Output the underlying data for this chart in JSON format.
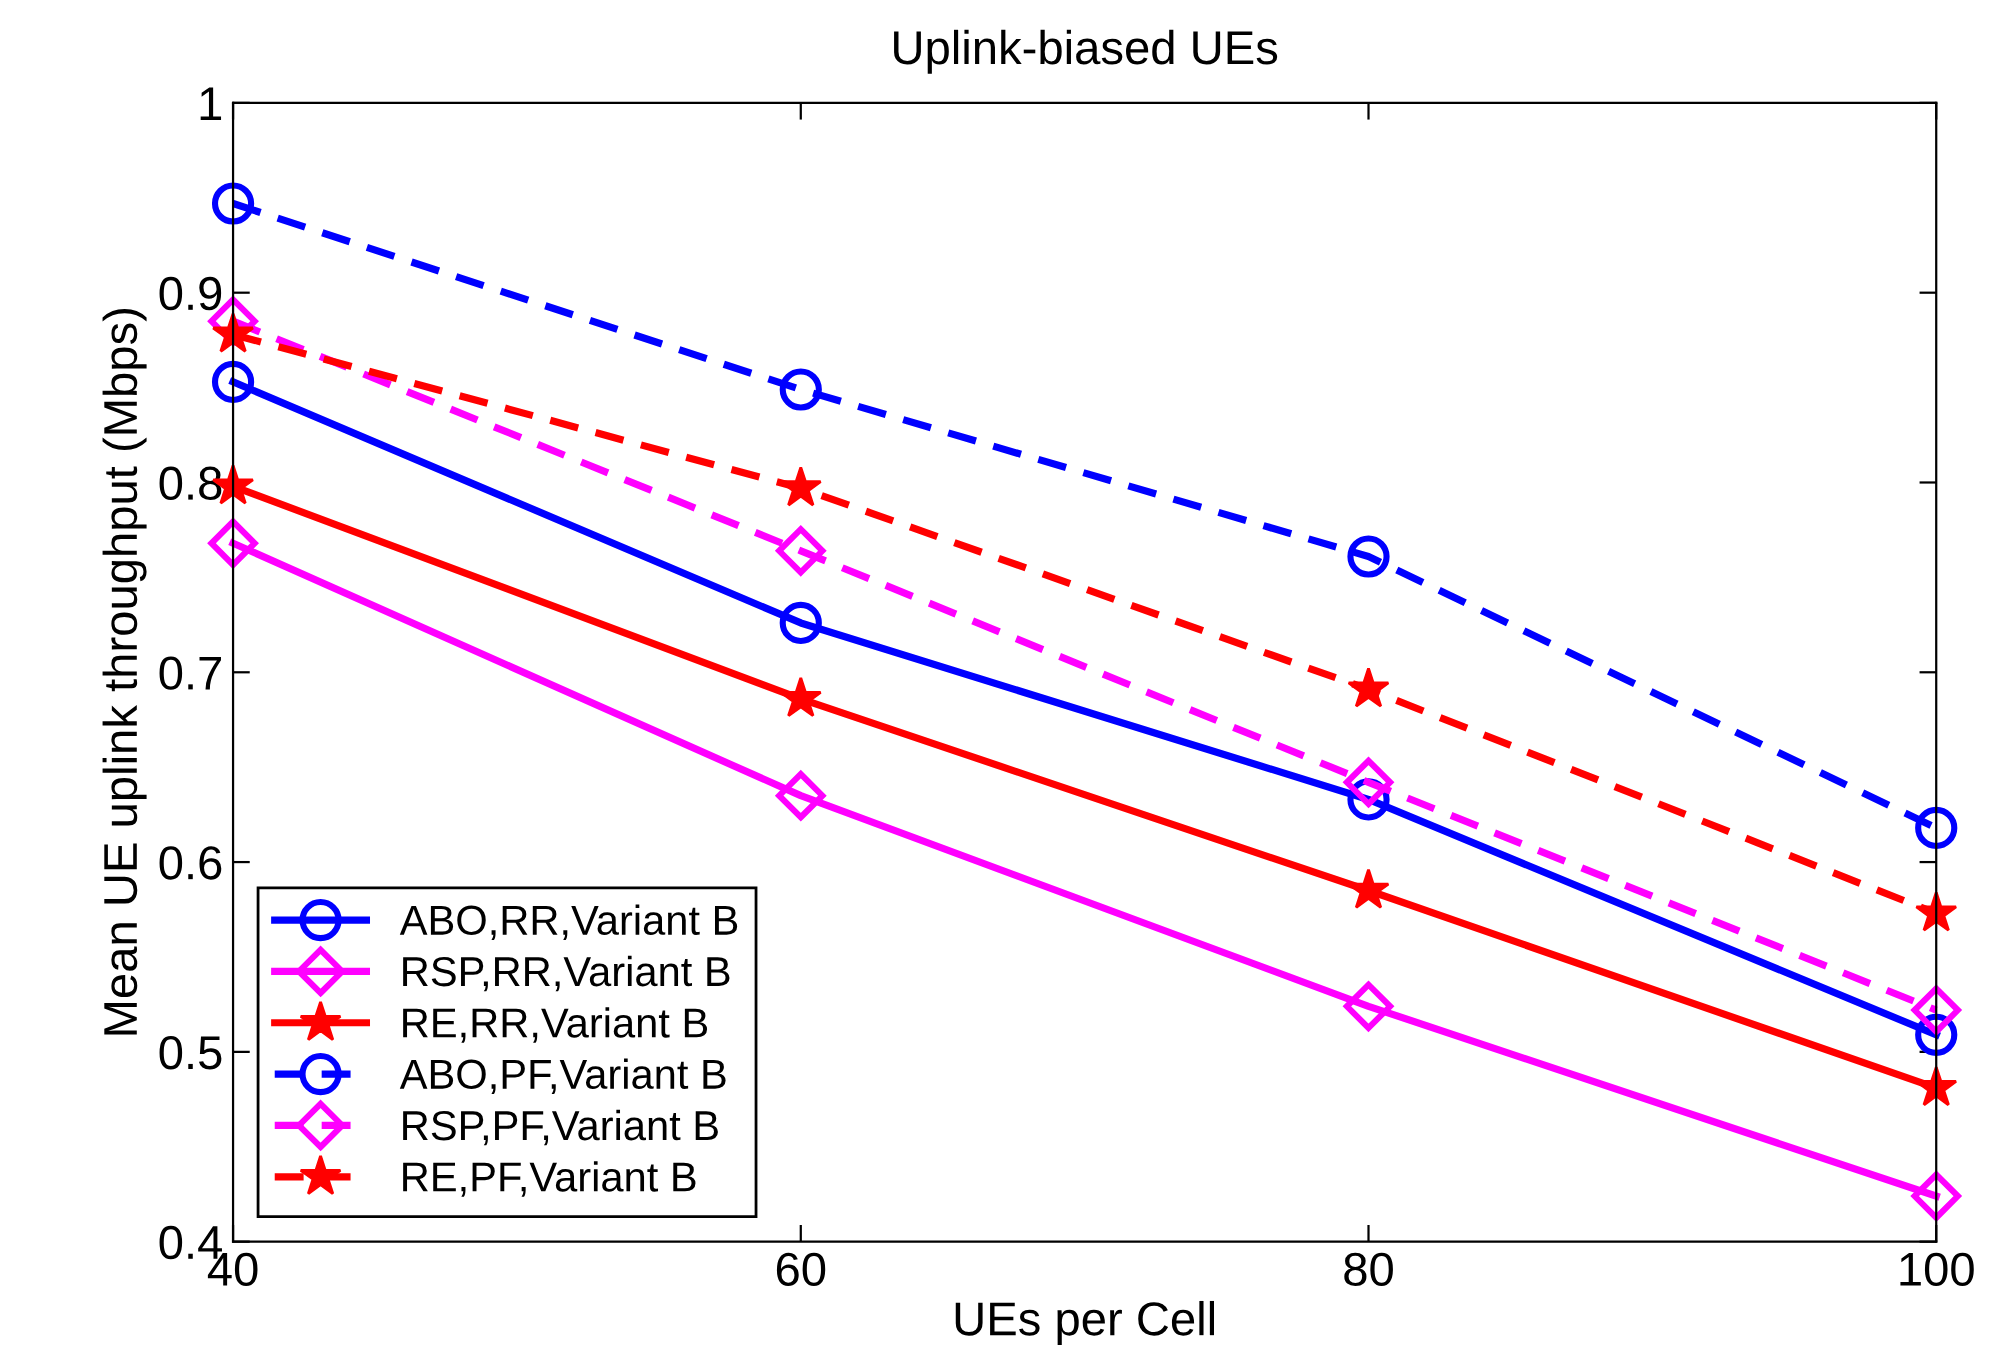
{
  "chart_data": {
    "type": "line",
    "title": "Uplink-biased UEs",
    "xlabel": "UEs per Cell",
    "ylabel": "Mean UE uplink throughput (Mbps)",
    "x": [
      40,
      60,
      80,
      100
    ],
    "series": [
      {
        "name": "ABO,RR,Variant B",
        "color": "#0000ff",
        "marker": "circle",
        "line_style": "solid",
        "values": [
          0.853,
          0.726,
          0.633,
          0.509
        ]
      },
      {
        "name": "RSP,RR,Variant B",
        "color": "#ff00ff",
        "marker": "diamond",
        "line_style": "solid",
        "values": [
          0.768,
          0.635,
          0.524,
          0.424
        ]
      },
      {
        "name": "RE,RR,Variant B",
        "color": "#ff0000",
        "marker": "star",
        "line_style": "solid",
        "values": [
          0.798,
          0.686,
          0.585,
          0.481
        ]
      },
      {
        "name": "ABO,PF,Variant B",
        "color": "#0000ff",
        "marker": "circle",
        "line_style": "dashed",
        "values": [
          0.947,
          0.849,
          0.761,
          0.618
        ]
      },
      {
        "name": "RSP,PF,Variant B",
        "color": "#ff00ff",
        "marker": "diamond",
        "line_style": "dashed",
        "values": [
          0.885,
          0.764,
          0.642,
          0.522
        ]
      },
      {
        "name": "RE,PF,Variant B",
        "color": "#ff0000",
        "marker": "star",
        "line_style": "dashed",
        "values": [
          0.878,
          0.797,
          0.691,
          0.573
        ]
      }
    ],
    "xlim": [
      40,
      100
    ],
    "xticks": [
      40,
      60,
      80,
      100
    ],
    "ylim": [
      0.4,
      1
    ],
    "yticks": [
      0.4,
      0.5,
      0.6,
      0.7,
      0.8,
      0.9,
      1
    ],
    "grid": false,
    "legend": "bottom left"
  }
}
